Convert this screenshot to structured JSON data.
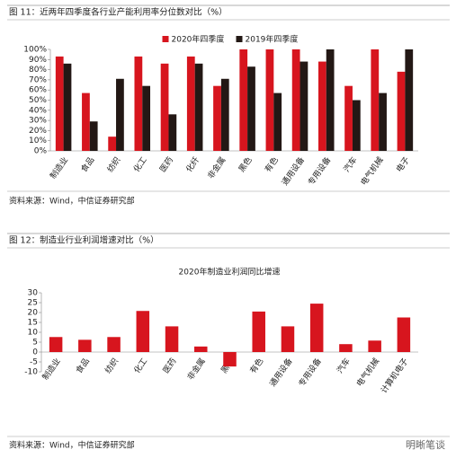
{
  "chart_data": [
    {
      "type": "bar",
      "caption": "图 11：近两年四季度各行业产能利用率分位数对比（%）",
      "source": "资料来源：Wind，中信证券研究部",
      "categories": [
        "制造业",
        "食品",
        "纺织",
        "化工",
        "医药",
        "化纤",
        "非金属",
        "黑色",
        "有色",
        "通用设备",
        "专用设备",
        "汽车",
        "电气机械",
        "电子"
      ],
      "series": [
        {
          "name": "2020年四季度",
          "color": "#d7151e",
          "values": [
            93,
            57,
            14,
            93,
            86,
            93,
            64,
            100,
            100,
            100,
            88,
            64,
            100,
            78
          ]
        },
        {
          "name": "2019年四季度",
          "color": "#231815",
          "values": [
            86,
            29,
            71,
            64,
            36,
            86,
            71,
            83,
            57,
            88,
            100,
            50,
            57,
            100
          ]
        }
      ],
      "ylim": [
        0,
        100
      ],
      "yticks": [
        {
          "value": 0,
          "label": "0%"
        },
        {
          "value": 10,
          "label": "10%"
        },
        {
          "value": 20,
          "label": "20%"
        },
        {
          "value": 30,
          "label": "30%"
        },
        {
          "value": 40,
          "label": "40%"
        },
        {
          "value": 50,
          "label": "50%"
        },
        {
          "value": 60,
          "label": "60%"
        },
        {
          "value": 70,
          "label": "70%"
        },
        {
          "value": 80,
          "label": "80%"
        },
        {
          "value": 90,
          "label": "90%"
        },
        {
          "value": 100,
          "label": "100%"
        }
      ],
      "legend": "top"
    },
    {
      "type": "bar",
      "caption": "图 12：制造业行业利润增速对比（%）",
      "title": "2020年制造业利润同比增速",
      "source": "资料来源：Wind，中信证券研究部",
      "watermark": "明晰笔谈",
      "categories": [
        "制造业",
        "食品",
        "纺织",
        "化工",
        "医药",
        "非金属",
        "黑色",
        "有色",
        "通用设备",
        "专用设备",
        "汽车",
        "电气机械",
        "计算机电子"
      ],
      "values": [
        7.6,
        6.2,
        7.6,
        20.8,
        13,
        2.8,
        -7.3,
        20.5,
        13,
        24.5,
        4,
        5.8,
        17.5
      ],
      "color": "#d7151e",
      "ylim": [
        -10,
        30
      ],
      "yticks": [
        -10,
        -5,
        0,
        5,
        10,
        15,
        20,
        25,
        30
      ]
    }
  ]
}
